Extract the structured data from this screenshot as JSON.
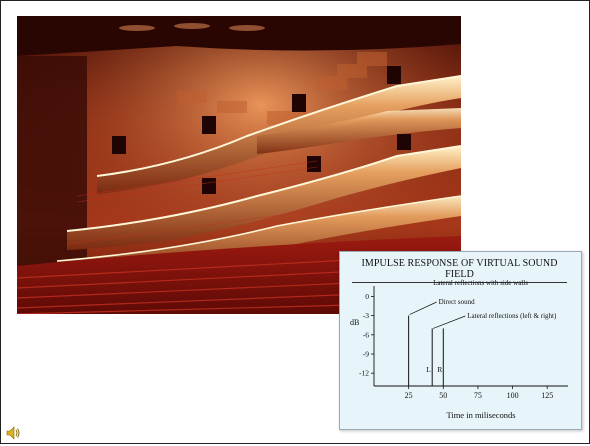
{
  "photo": {
    "icon": "concert-hall-photo"
  },
  "chart_data": {
    "type": "line",
    "title": "IMPULSE RESPONSE OF VIRTUAL SOUND FIELD",
    "subtitle": "Lateral reflections with side walls",
    "xlabel": "Time in miliseconds",
    "ylabel": "dB",
    "xlim": [
      0,
      140
    ],
    "ylim": [
      -14,
      1
    ],
    "x_ticks": [
      25,
      50,
      75,
      100,
      125
    ],
    "y_ticks": [
      0,
      -3,
      -6,
      -9,
      -12
    ],
    "y_tick_labels": [
      "0",
      "-3",
      "-6",
      "-9",
      "-12"
    ],
    "series": [
      {
        "values": [
          {
            "x": 25,
            "y": -3
          },
          {
            "x": 42,
            "y": -5
          },
          {
            "x": 50,
            "y": -5
          }
        ]
      }
    ],
    "annotations": [
      {
        "text": "Direct sound",
        "x": 25,
        "y": -3
      },
      {
        "text": "Lateral reflections (left & right)",
        "x": 50,
        "y": -5
      },
      {
        "text": "L",
        "x": 42,
        "y": -11
      },
      {
        "text": "R",
        "x": 50,
        "y": -11
      }
    ],
    "colors": {
      "card": "#e7f4f9",
      "ink": "#111111"
    }
  },
  "footer": {
    "icon": "speaker-icon"
  }
}
